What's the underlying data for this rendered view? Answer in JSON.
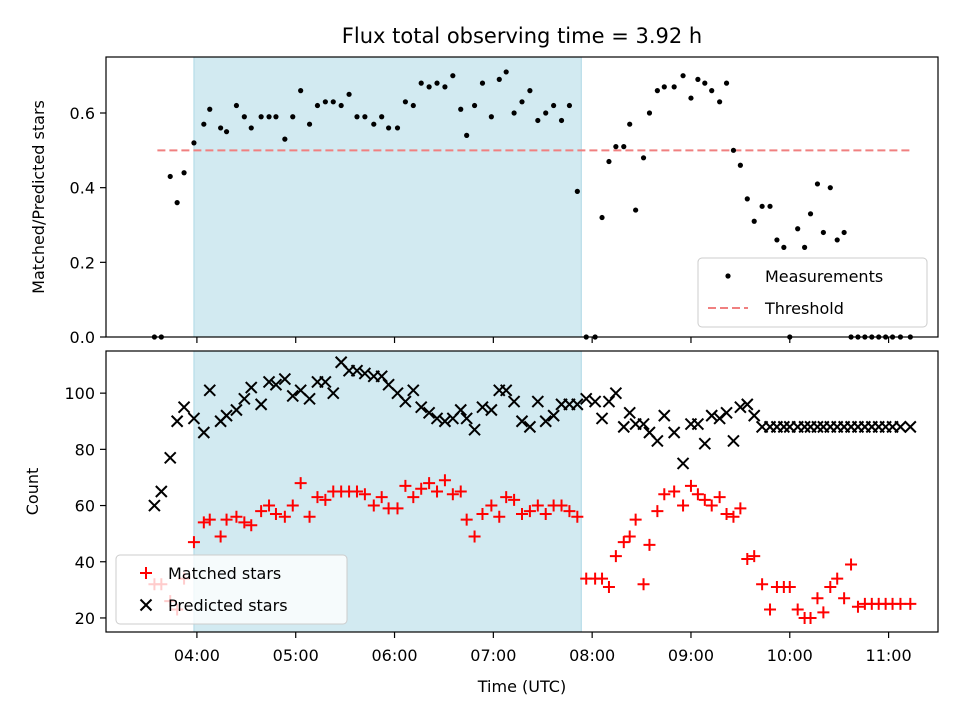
{
  "title": "Flux total observing time = 3.92 h",
  "colors": {
    "band": "#add8e6",
    "measurements": "#000000",
    "threshold": "#f08080",
    "matched": "#ff0000",
    "predicted": "#000000"
  },
  "chart_data": [
    {
      "type": "scatter",
      "ylabel": "Matched/Predicted stars",
      "xlim": [
        3.08,
        11.5
      ],
      "ylim": [
        0,
        0.75
      ],
      "yticks": [
        0,
        0.2,
        0.4,
        0.6
      ],
      "ytick_labels": [
        "0.0",
        "0.2",
        "0.4",
        "0.6"
      ],
      "shaded_band": [
        3.97,
        7.89
      ],
      "legend": {
        "placement": "lower-right",
        "entries": [
          "Measurements",
          "Threshold"
        ]
      },
      "threshold": {
        "name": "Threshold",
        "value": 0.5,
        "x_range": [
          3.6,
          11.25
        ]
      },
      "series": [
        {
          "name": "Measurements",
          "x": [
            3.57,
            3.64,
            3.73,
            3.8,
            3.87,
            3.97,
            4.07,
            4.13,
            4.24,
            4.3,
            4.4,
            4.48,
            4.55,
            4.65,
            4.73,
            4.8,
            4.89,
            4.97,
            5.05,
            5.14,
            5.22,
            5.3,
            5.38,
            5.46,
            5.54,
            5.62,
            5.7,
            5.79,
            5.87,
            5.94,
            6.03,
            6.11,
            6.19,
            6.27,
            6.35,
            6.43,
            6.51,
            6.59,
            6.67,
            6.73,
            6.81,
            6.89,
            6.98,
            7.06,
            7.13,
            7.21,
            7.29,
            7.37,
            7.45,
            7.53,
            7.61,
            7.69,
            7.77,
            7.85,
            7.94,
            8.03,
            8.1,
            8.17,
            8.24,
            8.32,
            8.38,
            8.44,
            8.52,
            8.58,
            8.66,
            8.73,
            8.83,
            8.92,
            9.0,
            9.07,
            9.14,
            9.21,
            9.29,
            9.36,
            9.43,
            9.5,
            9.57,
            9.64,
            9.72,
            9.8,
            9.87,
            9.94,
            10.0,
            10.08,
            10.15,
            10.21,
            10.28,
            10.34,
            10.41,
            10.48,
            10.55,
            10.62,
            10.69,
            10.76,
            10.83,
            10.9,
            10.97,
            11.04,
            11.12,
            11.22
          ],
          "y": [
            0.0,
            0.0,
            0.43,
            0.36,
            0.44,
            0.52,
            0.57,
            0.61,
            0.56,
            0.55,
            0.62,
            0.59,
            0.56,
            0.59,
            0.59,
            0.59,
            0.53,
            0.59,
            0.66,
            0.57,
            0.62,
            0.63,
            0.63,
            0.62,
            0.65,
            0.59,
            0.59,
            0.57,
            0.59,
            0.56,
            0.56,
            0.63,
            0.62,
            0.68,
            0.67,
            0.68,
            0.67,
            0.7,
            0.61,
            0.54,
            0.62,
            0.68,
            0.59,
            0.69,
            0.71,
            0.6,
            0.63,
            0.66,
            0.58,
            0.6,
            0.62,
            0.58,
            0.62,
            0.39,
            0.0,
            0.0,
            0.32,
            0.47,
            0.51,
            0.51,
            0.57,
            0.34,
            0.48,
            0.6,
            0.66,
            0.67,
            0.67,
            0.7,
            0.64,
            0.69,
            0.68,
            0.66,
            0.63,
            0.68,
            0.5,
            0.46,
            0.37,
            0.31,
            0.35,
            0.35,
            0.26,
            0.24,
            0.0,
            0.29,
            0.24,
            0.33,
            0.41,
            0.28,
            0.4,
            0.26,
            0.28,
            0.0,
            0.0,
            0.0,
            0.0,
            0.0,
            0.0,
            0.0,
            0.0,
            0.0
          ]
        }
      ]
    },
    {
      "type": "scatter",
      "ylabel": "Count",
      "xlabel": "Time (UTC)",
      "xlim": [
        3.08,
        11.5
      ],
      "ylim": [
        15,
        115
      ],
      "yticks": [
        20,
        40,
        60,
        80,
        100
      ],
      "xticks": [
        4,
        5,
        6,
        7,
        8,
        9,
        10,
        11
      ],
      "xtick_labels": [
        "04:00",
        "05:00",
        "06:00",
        "07:00",
        "08:00",
        "09:00",
        "10:00",
        "11:00"
      ],
      "shaded_band": [
        3.97,
        7.89
      ],
      "legend": {
        "placement": "lower-left",
        "entries": [
          "Matched stars",
          "Predicted stars"
        ]
      },
      "series": [
        {
          "name": "Matched stars",
          "marker": "plus",
          "x": [
            3.57,
            3.64,
            3.73,
            3.8,
            3.87,
            3.97,
            4.07,
            4.13,
            4.24,
            4.3,
            4.4,
            4.48,
            4.55,
            4.65,
            4.73,
            4.8,
            4.89,
            4.97,
            5.05,
            5.14,
            5.22,
            5.3,
            5.38,
            5.46,
            5.54,
            5.62,
            5.7,
            5.79,
            5.87,
            5.94,
            6.03,
            6.11,
            6.19,
            6.27,
            6.35,
            6.43,
            6.51,
            6.59,
            6.67,
            6.73,
            6.81,
            6.89,
            6.98,
            7.06,
            7.13,
            7.21,
            7.29,
            7.37,
            7.45,
            7.53,
            7.61,
            7.69,
            7.77,
            7.85,
            7.94,
            8.03,
            8.1,
            8.17,
            8.24,
            8.32,
            8.38,
            8.44,
            8.52,
            8.58,
            8.66,
            8.73,
            8.83,
            8.92,
            9.0,
            9.07,
            9.14,
            9.21,
            9.29,
            9.36,
            9.43,
            9.5,
            9.57,
            9.64,
            9.72,
            9.8,
            9.87,
            9.94,
            10.0,
            10.08,
            10.15,
            10.21,
            10.28,
            10.34,
            10.41,
            10.48,
            10.55,
            10.62,
            10.69,
            10.76,
            10.83,
            10.9,
            10.97,
            11.04,
            11.12,
            11.22
          ],
          "y": [
            32,
            32,
            26,
            23,
            34,
            47,
            54,
            55,
            49,
            55,
            56,
            54,
            53,
            58,
            60,
            57,
            56,
            60,
            68,
            56,
            63,
            62,
            65,
            65,
            65,
            65,
            64,
            60,
            63,
            59,
            59,
            67,
            63,
            66,
            68,
            65,
            69,
            64,
            65,
            55,
            49,
            57,
            60,
            56,
            63,
            62,
            57,
            58,
            60,
            57,
            60,
            60,
            58,
            56,
            34,
            34,
            34,
            31,
            42,
            47,
            49,
            55,
            32,
            46,
            58,
            64,
            65,
            60,
            67,
            64,
            62,
            60,
            63,
            57,
            56,
            59,
            41,
            42,
            32,
            23,
            31,
            31,
            31,
            23,
            20,
            20,
            27,
            22,
            31,
            34,
            27,
            39,
            24,
            25,
            25,
            25,
            25,
            25,
            25,
            25
          ]
        },
        {
          "name": "Predicted stars",
          "marker": "cross",
          "x": [
            3.57,
            3.64,
            3.73,
            3.8,
            3.87,
            3.97,
            4.07,
            4.13,
            4.24,
            4.3,
            4.4,
            4.48,
            4.55,
            4.65,
            4.73,
            4.8,
            4.89,
            4.97,
            5.05,
            5.14,
            5.22,
            5.3,
            5.38,
            5.46,
            5.54,
            5.62,
            5.7,
            5.79,
            5.87,
            5.94,
            6.03,
            6.11,
            6.19,
            6.27,
            6.35,
            6.43,
            6.51,
            6.59,
            6.67,
            6.73,
            6.81,
            6.89,
            6.98,
            7.06,
            7.13,
            7.21,
            7.29,
            7.37,
            7.45,
            7.53,
            7.61,
            7.69,
            7.77,
            7.85,
            7.94,
            8.03,
            8.1,
            8.17,
            8.24,
            8.32,
            8.38,
            8.44,
            8.52,
            8.58,
            8.66,
            8.73,
            8.83,
            8.92,
            9.0,
            9.07,
            9.14,
            9.21,
            9.29,
            9.36,
            9.43,
            9.5,
            9.57,
            9.64,
            9.72,
            9.8,
            9.87,
            9.94,
            10.0,
            10.08,
            10.15,
            10.21,
            10.28,
            10.34,
            10.41,
            10.48,
            10.55,
            10.62,
            10.69,
            10.76,
            10.83,
            10.9,
            10.97,
            11.04,
            11.12,
            11.22
          ],
          "y": [
            60,
            65,
            77,
            90,
            95,
            91,
            86,
            101,
            90,
            92,
            94,
            98,
            102,
            96,
            104,
            103,
            105,
            99,
            101,
            98,
            104,
            104,
            100,
            111,
            108,
            108,
            107,
            106,
            106,
            103,
            100,
            97,
            101,
            95,
            93,
            91,
            90,
            91,
            94,
            91,
            87,
            95,
            94,
            101,
            101,
            97,
            90,
            88,
            97,
            90,
            92,
            96,
            96,
            96,
            98,
            97,
            91,
            97,
            100,
            88,
            93,
            89,
            89,
            86,
            83,
            92,
            86,
            75,
            89,
            89,
            82,
            92,
            91,
            93,
            83,
            95,
            96,
            92,
            88,
            88,
            88,
            88,
            88,
            88,
            88,
            88,
            88,
            88,
            88,
            88,
            88,
            88,
            88,
            88,
            88,
            88,
            88,
            88,
            88,
            88
          ]
        }
      ]
    }
  ]
}
